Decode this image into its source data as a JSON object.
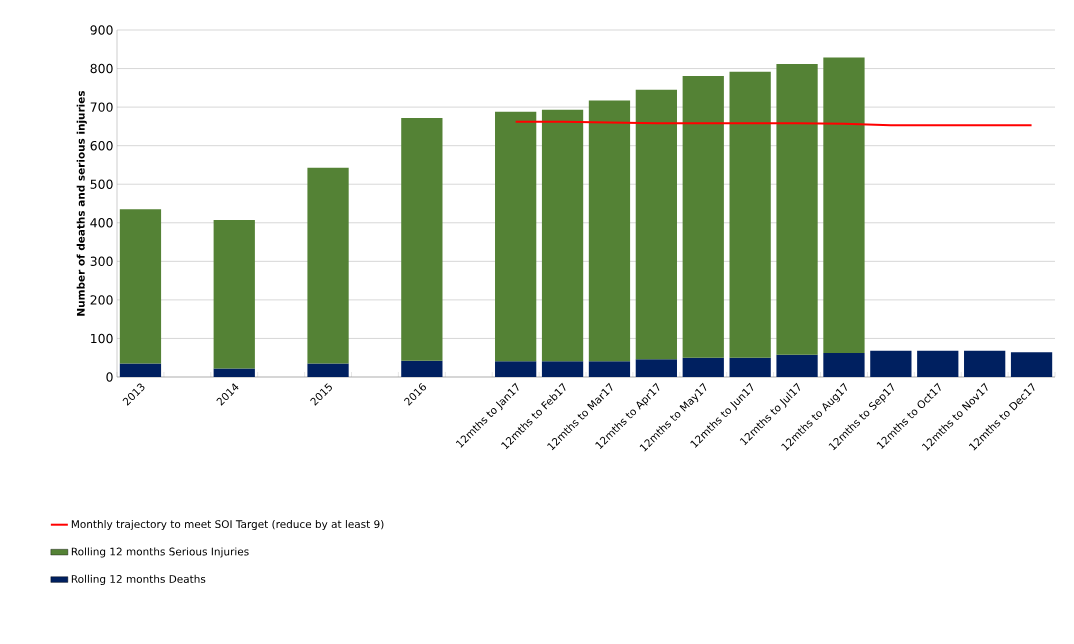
{
  "chart_data": {
    "type": "bar",
    "stacked": true,
    "ylabel": "Number of deaths and serious injuries",
    "categories": [
      "2013",
      null,
      "2014",
      null,
      "2015",
      null,
      "2016",
      null,
      "12mths to Jan17",
      "12mths to Feb17",
      "12mths to Mar17",
      "12mths to Apr17",
      "12mths to May17",
      "12mths to Jun17",
      "12mths to Jul17",
      "12mths to Aug17",
      "12mths to Sep17",
      "12mths to Oct17",
      "12mths to Nov17",
      "12mths to Dec17"
    ],
    "series": [
      {
        "name": "Rolling 12 months Deaths",
        "color": "#002060",
        "values": [
          35,
          null,
          22,
          null,
          35,
          null,
          42,
          null,
          41,
          41,
          41,
          46,
          50,
          50,
          58,
          62,
          68,
          68,
          68,
          64
        ]
      },
      {
        "name": "Rolling 12 months Serious Injuries",
        "color": "#548235",
        "values": [
          400,
          null,
          385,
          null,
          508,
          null,
          630,
          null,
          647,
          652,
          676,
          699,
          731,
          742,
          754,
          767,
          null,
          null,
          null,
          null
        ]
      },
      {
        "name": "Monthly trajectory to meet SOI Target (reduce by at least 9)",
        "type": "line",
        "color": "#ff0000",
        "values": [
          null,
          null,
          null,
          null,
          null,
          null,
          null,
          null,
          662,
          662,
          660,
          658,
          658,
          658,
          658,
          657,
          653,
          653,
          653,
          653
        ]
      }
    ],
    "ylim": [
      0,
      900
    ],
    "yticks": [
      0,
      100,
      200,
      300,
      400,
      500,
      600,
      700,
      800,
      900
    ],
    "grid": "y",
    "legend": "bottom left",
    "marker": "none"
  }
}
